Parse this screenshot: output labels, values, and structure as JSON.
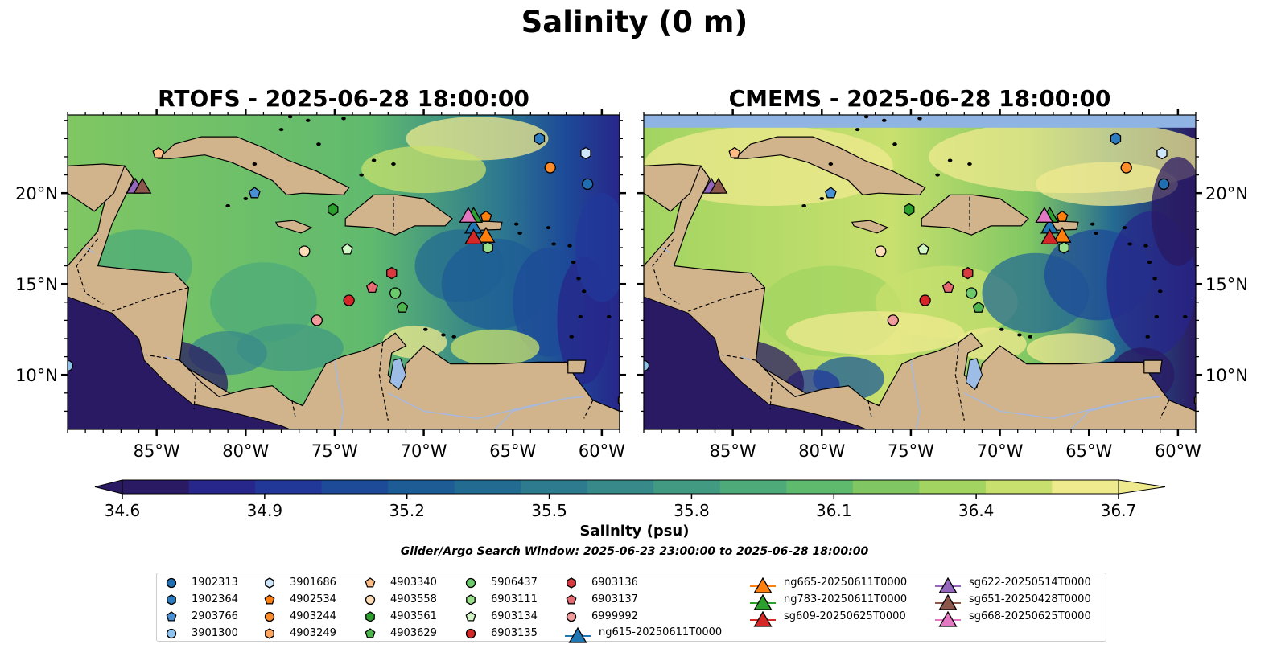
{
  "title": "Salinity (0 m)",
  "panels": [
    {
      "title": "RTOFS - 2025-06-28 18:00:00",
      "model": "rtofs"
    },
    {
      "title": "CMEMS - 2025-06-28 18:00:00",
      "model": "cmems"
    }
  ],
  "axes": {
    "lon_ticks": [
      "85°W",
      "80°W",
      "75°W",
      "70°W",
      "65°W",
      "60°W"
    ],
    "lat_ticks": [
      "10°N",
      "15°N",
      "20°N"
    ],
    "lon_values": [
      -85,
      -80,
      -75,
      -70,
      -65,
      -60
    ],
    "lat_values": [
      10,
      15,
      20
    ],
    "lon_range": [
      -90,
      -59
    ],
    "lat_range": [
      7,
      24.3
    ]
  },
  "colorbar": {
    "label": "Salinity (psu)",
    "ticks": [
      "34.6",
      "34.9",
      "35.2",
      "35.5",
      "35.8",
      "36.1",
      "36.4",
      "36.7"
    ],
    "tick_values": [
      34.6,
      34.9,
      35.2,
      35.5,
      35.8,
      36.1,
      36.4,
      36.7
    ],
    "range": [
      34.6,
      36.7
    ],
    "extend": "both",
    "colors": [
      "#2a1a63",
      "#27268a",
      "#213899",
      "#1d4b98",
      "#1e5c96",
      "#246b92",
      "#2e7a8f",
      "#388a8a",
      "#429a82",
      "#4eab79",
      "#60ba6e",
      "#80c763",
      "#a2d462",
      "#c8e06e",
      "#f0ea8f"
    ]
  },
  "search_window": "Glider/Argo Search Window: 2025-06-23 23:00:00 to 2025-06-28 18:00:00",
  "colors": {
    "land": "#d2b48c",
    "water_body": "#9dbde6",
    "rivers": "#a8b8d8"
  },
  "platforms": [
    {
      "id": "1902313",
      "marker": "circle",
      "color": "#1f6fb2",
      "lon": -60.8,
      "lat": 20.5
    },
    {
      "id": "1902364",
      "marker": "hexagon",
      "color": "#2c7cc1",
      "lon": -63.5,
      "lat": 23.0
    },
    {
      "id": "2903766",
      "marker": "pentagon",
      "color": "#4a90d6",
      "lon": -79.5,
      "lat": 20.0
    },
    {
      "id": "3901300",
      "marker": "circle",
      "color": "#8ec4ef",
      "lon": -90.0,
      "lat": 10.5
    },
    {
      "id": "3901686",
      "marker": "hexagon",
      "color": "#cfe6fa",
      "lon": -60.9,
      "lat": 22.2
    },
    {
      "id": "4902534",
      "marker": "pentagon",
      "color": "#ff7f0e",
      "lon": -66.5,
      "lat": 18.7
    },
    {
      "id": "4903244",
      "marker": "circle",
      "color": "#ff8c2a",
      "lon": -62.9,
      "lat": 21.4
    },
    {
      "id": "4903249",
      "marker": "hexagon",
      "color": "#ffa45c",
      "lon": -58.8,
      "lat": 8.6
    },
    {
      "id": "4903340",
      "marker": "pentagon",
      "color": "#ffbd85",
      "lon": -84.9,
      "lat": 22.2
    },
    {
      "id": "4903558",
      "marker": "circle",
      "color": "#ffdcb8",
      "lon": -76.7,
      "lat": 16.8
    },
    {
      "id": "4903561",
      "marker": "hexagon",
      "color": "#2ca02c",
      "lon": -75.1,
      "lat": 19.1
    },
    {
      "id": "4903629",
      "marker": "pentagon",
      "color": "#4cb64c",
      "lon": -71.2,
      "lat": 13.7
    },
    {
      "id": "5906437",
      "marker": "circle",
      "color": "#6cc96c",
      "lon": -71.6,
      "lat": 14.5
    },
    {
      "id": "6903111",
      "marker": "hexagon",
      "color": "#98df8a",
      "lon": -66.4,
      "lat": 17.0
    },
    {
      "id": "6903134",
      "marker": "pentagon",
      "color": "#d4f7c8",
      "lon": -74.3,
      "lat": 16.9
    },
    {
      "id": "6903135",
      "marker": "circle",
      "color": "#d62728",
      "lon": -74.2,
      "lat": 14.1
    },
    {
      "id": "6903136",
      "marker": "hexagon",
      "color": "#d83a3e",
      "lon": -71.8,
      "lat": 15.6
    },
    {
      "id": "6903137",
      "marker": "pentagon",
      "color": "#e66a72",
      "lon": -72.9,
      "lat": 14.8
    },
    {
      "id": "6999992",
      "marker": "circle",
      "color": "#f29b9b",
      "lon": -76.0,
      "lat": 13.0
    }
  ],
  "gliders": [
    {
      "id": "ng615-20250611T0000",
      "color": "#1f77b4",
      "lon": -67.2,
      "lat": 18.2
    },
    {
      "id": "ng665-20250611T0000",
      "color": "#ff7f0e",
      "lon": -66.5,
      "lat": 17.7
    },
    {
      "id": "ng783-20250611T0000",
      "color": "#2ca02c",
      "lon": -67.2,
      "lat": 18.8
    },
    {
      "id": "sg609-20250625T0000",
      "color": "#d62728",
      "lon": -67.2,
      "lat": 17.6
    },
    {
      "id": "sg622-20250514T0000",
      "color": "#9467bd",
      "lon": -86.2,
      "lat": 20.4
    },
    {
      "id": "sg651-20250428T0000",
      "color": "#8c564b",
      "lon": -85.8,
      "lat": 20.4
    },
    {
      "id": "sg668-20250625T0000",
      "color": "#e377c2",
      "lon": -67.5,
      "lat": 18.8
    }
  ]
}
